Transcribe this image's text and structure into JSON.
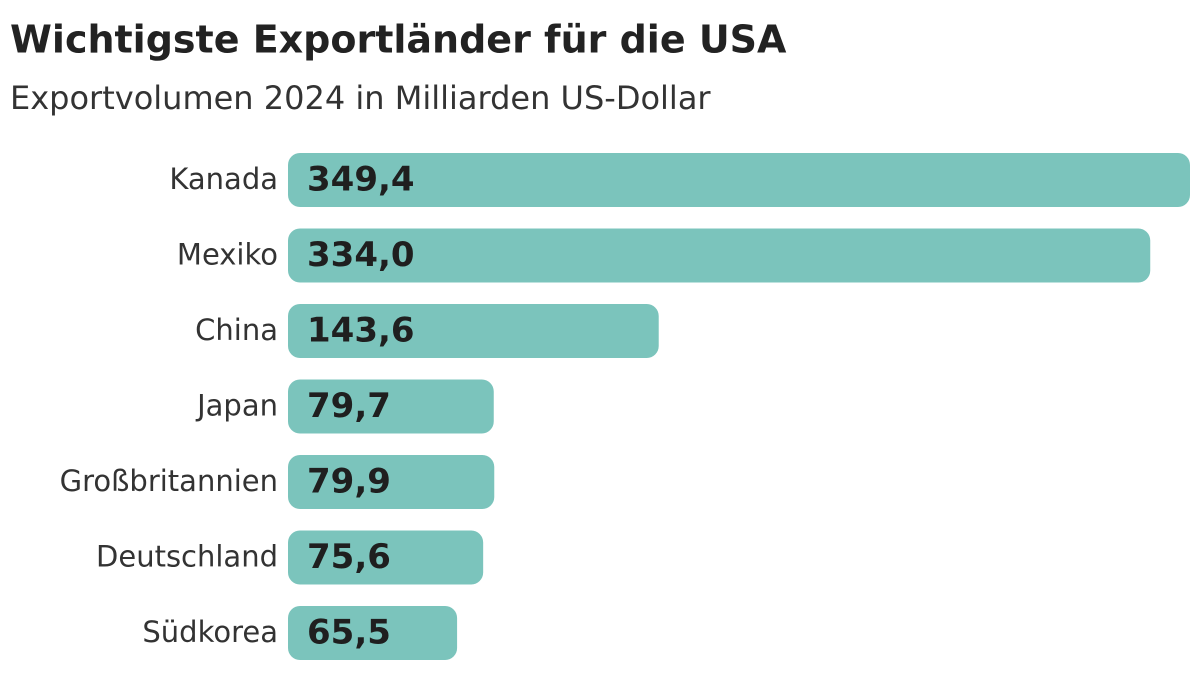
{
  "chart_data": {
    "type": "bar",
    "orientation": "horizontal",
    "title": "Wichtigste Exportländer für die USA",
    "subtitle": "Exportvolumen 2024 in Milliarden US-Dollar",
    "categories": [
      "Kanada",
      "Mexiko",
      "China",
      "Japan",
      "Großbritannien",
      "Deutschland",
      "Südkorea"
    ],
    "values": [
      349.4,
      334.0,
      143.6,
      79.7,
      79.9,
      75.6,
      65.5
    ],
    "value_labels": [
      "349,4",
      "334,0",
      "143,6",
      "79,7",
      "79,9",
      "75,6",
      "65,5"
    ],
    "color": "#7bc4bc"
  }
}
